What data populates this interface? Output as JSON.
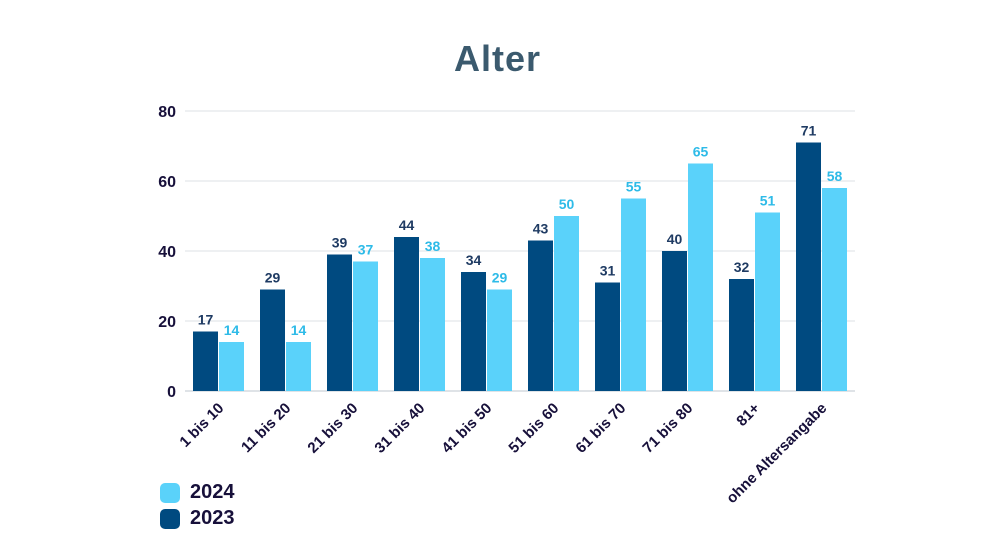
{
  "chart_data": {
    "type": "bar",
    "title": "Alter",
    "xlabel": "",
    "ylabel": "",
    "ylim": [
      0,
      80
    ],
    "yticks": [
      0,
      20,
      40,
      60,
      80
    ],
    "grid": true,
    "legend_position": "bottom-left",
    "categories": [
      "1 bis 10",
      "11 bis 20",
      "21 bis 30",
      "31 bis 40",
      "41 bis 50",
      "51 bis 60",
      "61 bis 70",
      "71 bis 80",
      "81+",
      "ohne Altersangabe"
    ],
    "series": [
      {
        "name": "2023",
        "color": "#004a80",
        "values": [
          17,
          29,
          39,
          44,
          34,
          43,
          31,
          40,
          32,
          71
        ]
      },
      {
        "name": "2024",
        "color": "#5ad2fa",
        "values": [
          14,
          14,
          37,
          38,
          29,
          50,
          55,
          65,
          51,
          58
        ]
      }
    ]
  },
  "legend": {
    "items": [
      {
        "label": "2024",
        "color": "#5ad2fa"
      },
      {
        "label": "2023",
        "color": "#004a80"
      }
    ]
  }
}
